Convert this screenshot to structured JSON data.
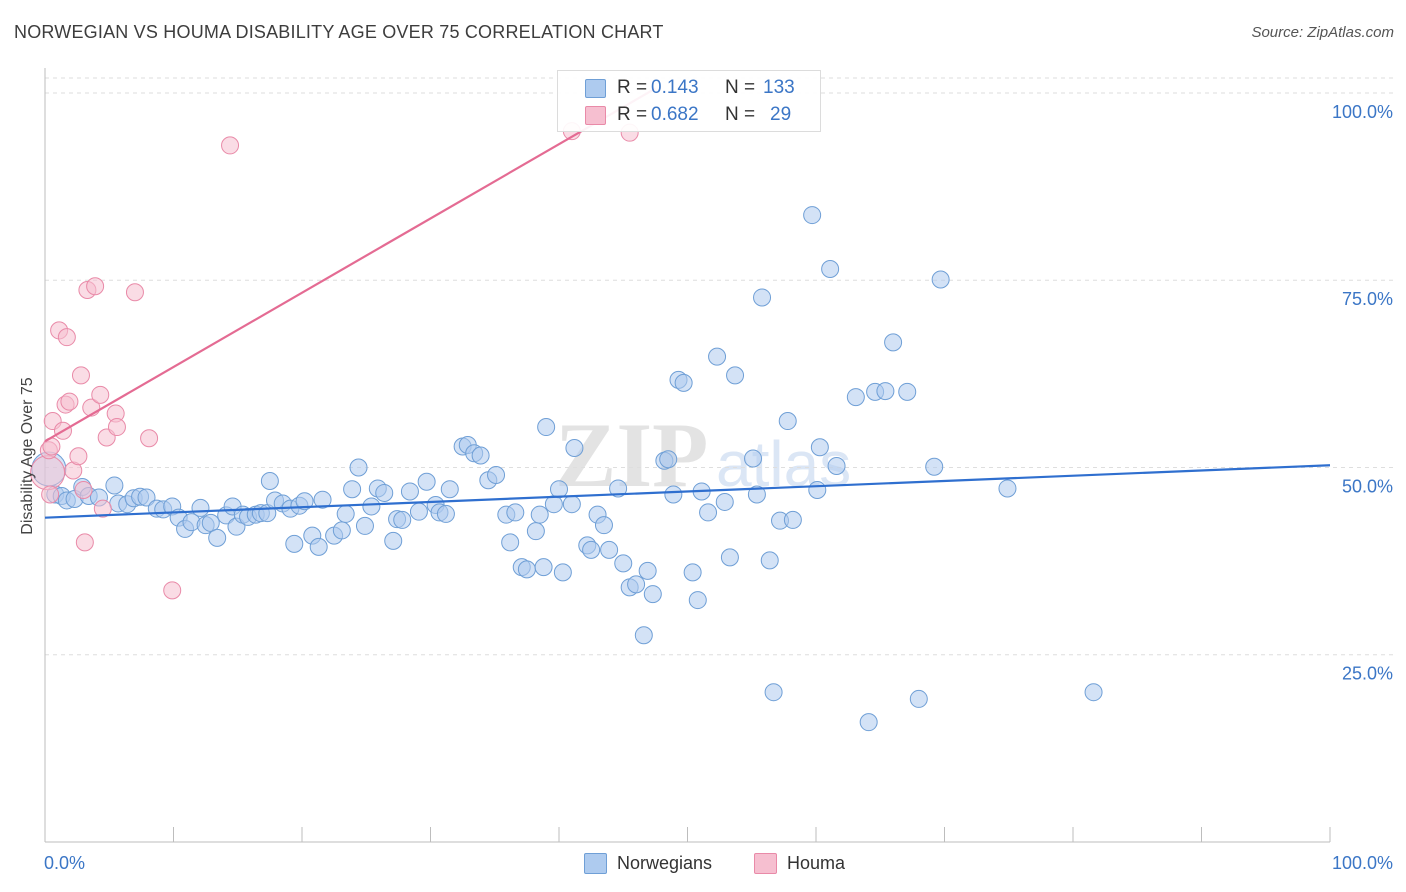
{
  "header": {
    "title": "NORWEGIAN VS HOUMA DISABILITY AGE OVER 75 CORRELATION CHART",
    "source": "Source: ZipAtlas.com"
  },
  "stats": {
    "r_label": "R =",
    "n_label": "N =",
    "norwegians": {
      "r": "0.143",
      "n": "133"
    },
    "houma": {
      "r": "0.682",
      "n": "29"
    }
  },
  "legend": {
    "norwegians": "Norwegians",
    "houma": "Houma"
  },
  "watermark": {
    "zip": "ZIP",
    "atlas": "atlas"
  },
  "colors": {
    "norwegians_fill": "#aecbef",
    "norwegians_stroke": "#6f9fd6",
    "norwegians_line": "#2f6fcf",
    "houma_fill": "#f6bfd0",
    "houma_stroke": "#e98aa8",
    "houma_line": "#e46b93",
    "tick_label": "#3b76c6",
    "grid": "#dedede"
  },
  "chart_data": {
    "type": "scatter",
    "title": "NORWEGIAN VS HOUMA DISABILITY AGE OVER 75 CORRELATION CHART",
    "xlabel": "",
    "ylabel": "Disability Age Over 75",
    "xlim": [
      0,
      100
    ],
    "ylim": [
      0,
      102
    ],
    "x_tick_labels": [
      "0.0%",
      "100.0%"
    ],
    "y_ticks": [
      25,
      50,
      75,
      100
    ],
    "y_tick_labels": [
      "25.0%",
      "50.0%",
      "75.0%",
      "100.0%"
    ],
    "grid": true,
    "legend_position": "bottom-center",
    "series": [
      {
        "name": "Norwegians",
        "r": 0.143,
        "n": 133,
        "trend": {
          "x": [
            0,
            100
          ],
          "y": [
            43.3,
            50.3
          ]
        },
        "points": [
          [
            0.3,
            49.8
          ],
          [
            0.8,
            46.4
          ],
          [
            1.3,
            46.2
          ],
          [
            1.7,
            45.6
          ],
          [
            2.3,
            45.8
          ],
          [
            2.9,
            47.4
          ],
          [
            3.4,
            46.2
          ],
          [
            4.2,
            46.0
          ],
          [
            5.4,
            47.6
          ],
          [
            5.7,
            45.2
          ],
          [
            6.4,
            45.1
          ],
          [
            6.9,
            45.9
          ],
          [
            7.4,
            46.1
          ],
          [
            7.9,
            46.0
          ],
          [
            8.7,
            44.5
          ],
          [
            9.2,
            44.4
          ],
          [
            9.9,
            44.8
          ],
          [
            10.4,
            43.3
          ],
          [
            10.9,
            41.8
          ],
          [
            11.4,
            42.7
          ],
          [
            12.1,
            44.6
          ],
          [
            12.5,
            42.3
          ],
          [
            12.9,
            42.6
          ],
          [
            13.4,
            40.6
          ],
          [
            14.1,
            43.6
          ],
          [
            14.6,
            44.8
          ],
          [
            14.9,
            42.1
          ],
          [
            15.4,
            43.7
          ],
          [
            15.8,
            43.4
          ],
          [
            16.4,
            43.7
          ],
          [
            16.8,
            43.9
          ],
          [
            17.3,
            43.9
          ],
          [
            17.5,
            48.2
          ],
          [
            17.9,
            45.6
          ],
          [
            18.5,
            45.2
          ],
          [
            19.1,
            44.5
          ],
          [
            19.4,
            39.8
          ],
          [
            19.8,
            44.9
          ],
          [
            20.2,
            45.5
          ],
          [
            20.8,
            40.9
          ],
          [
            21.3,
            39.4
          ],
          [
            21.6,
            45.7
          ],
          [
            22.5,
            40.9
          ],
          [
            23.1,
            41.6
          ],
          [
            23.4,
            43.8
          ],
          [
            23.9,
            47.1
          ],
          [
            24.4,
            50.0
          ],
          [
            24.9,
            42.2
          ],
          [
            25.4,
            44.8
          ],
          [
            25.9,
            47.2
          ],
          [
            26.4,
            46.6
          ],
          [
            27.1,
            40.2
          ],
          [
            27.4,
            43.1
          ],
          [
            27.8,
            43.0
          ],
          [
            28.4,
            46.8
          ],
          [
            29.1,
            44.1
          ],
          [
            29.7,
            48.1
          ],
          [
            30.4,
            45.0
          ],
          [
            30.7,
            44.0
          ],
          [
            31.2,
            43.8
          ],
          [
            31.5,
            47.1
          ],
          [
            32.5,
            52.8
          ],
          [
            32.9,
            53.0
          ],
          [
            33.4,
            51.9
          ],
          [
            33.9,
            51.6
          ],
          [
            34.5,
            48.3
          ],
          [
            35.1,
            49.0
          ],
          [
            35.9,
            43.7
          ],
          [
            36.2,
            40.0
          ],
          [
            36.6,
            44.0
          ],
          [
            37.1,
            36.7
          ],
          [
            37.5,
            36.4
          ],
          [
            38.2,
            41.5
          ],
          [
            38.5,
            43.7
          ],
          [
            38.8,
            36.7
          ],
          [
            39.0,
            55.4
          ],
          [
            39.6,
            45.1
          ],
          [
            40.0,
            47.1
          ],
          [
            40.3,
            36.0
          ],
          [
            41.0,
            45.1
          ],
          [
            41.2,
            52.6
          ],
          [
            42.2,
            39.6
          ],
          [
            42.5,
            39.0
          ],
          [
            43.0,
            43.7
          ],
          [
            43.5,
            42.3
          ],
          [
            43.9,
            39.0
          ],
          [
            44.6,
            47.2
          ],
          [
            45.0,
            37.2
          ],
          [
            45.5,
            34.0
          ],
          [
            46.0,
            34.4
          ],
          [
            46.6,
            27.6
          ],
          [
            46.9,
            36.2
          ],
          [
            47.3,
            33.1
          ],
          [
            48.2,
            50.9
          ],
          [
            48.5,
            51.1
          ],
          [
            48.9,
            46.4
          ],
          [
            49.3,
            61.7
          ],
          [
            49.7,
            61.3
          ],
          [
            50.4,
            36.0
          ],
          [
            50.8,
            32.3
          ],
          [
            51.1,
            46.8
          ],
          [
            51.6,
            44.0
          ],
          [
            52.3,
            64.8
          ],
          [
            52.9,
            45.4
          ],
          [
            53.3,
            38.0
          ],
          [
            53.7,
            62.3
          ],
          [
            55.1,
            51.2
          ],
          [
            55.4,
            46.4
          ],
          [
            55.8,
            72.7
          ],
          [
            56.4,
            37.6
          ],
          [
            56.7,
            20.0
          ],
          [
            57.2,
            42.9
          ],
          [
            57.8,
            56.2
          ],
          [
            58.2,
            43.0
          ],
          [
            59.7,
            83.7
          ],
          [
            60.1,
            47.0
          ],
          [
            60.3,
            52.7
          ],
          [
            61.1,
            76.5
          ],
          [
            61.6,
            50.2
          ],
          [
            63.1,
            59.4
          ],
          [
            64.6,
            60.1
          ],
          [
            64.1,
            16.0
          ],
          [
            65.4,
            60.2
          ],
          [
            66.0,
            66.7
          ],
          [
            67.1,
            60.1
          ],
          [
            68.0,
            19.1
          ],
          [
            69.2,
            50.1
          ],
          [
            69.7,
            75.1
          ],
          [
            74.9,
            47.2
          ],
          [
            81.6,
            20.0
          ]
        ]
      },
      {
        "name": "Houma",
        "r": 0.682,
        "n": 29,
        "trend": {
          "x": [
            0,
            47.5
          ],
          "y": [
            53.5,
            100.6
          ]
        },
        "points": [
          [
            0.2,
            49.3
          ],
          [
            0.3,
            52.3
          ],
          [
            0.4,
            46.4
          ],
          [
            0.5,
            52.8
          ],
          [
            0.6,
            56.2
          ],
          [
            1.1,
            68.3
          ],
          [
            1.4,
            54.9
          ],
          [
            1.6,
            58.4
          ],
          [
            1.7,
            67.4
          ],
          [
            2.2,
            49.6
          ],
          [
            2.6,
            51.5
          ],
          [
            2.8,
            62.3
          ],
          [
            3.1,
            40.0
          ],
          [
            3.3,
            73.7
          ],
          [
            3.6,
            58.0
          ],
          [
            3.9,
            74.2
          ],
          [
            4.3,
            59.7
          ],
          [
            4.5,
            44.5
          ],
          [
            4.8,
            54.0
          ],
          [
            5.5,
            57.2
          ],
          [
            5.6,
            55.4
          ],
          [
            7.0,
            73.4
          ],
          [
            8.1,
            53.9
          ],
          [
            9.9,
            33.6
          ],
          [
            14.4,
            93.0
          ],
          [
            41.0,
            94.9
          ],
          [
            45.5,
            94.7
          ],
          [
            3.0,
            47.0
          ],
          [
            1.9,
            58.8
          ]
        ]
      }
    ]
  }
}
